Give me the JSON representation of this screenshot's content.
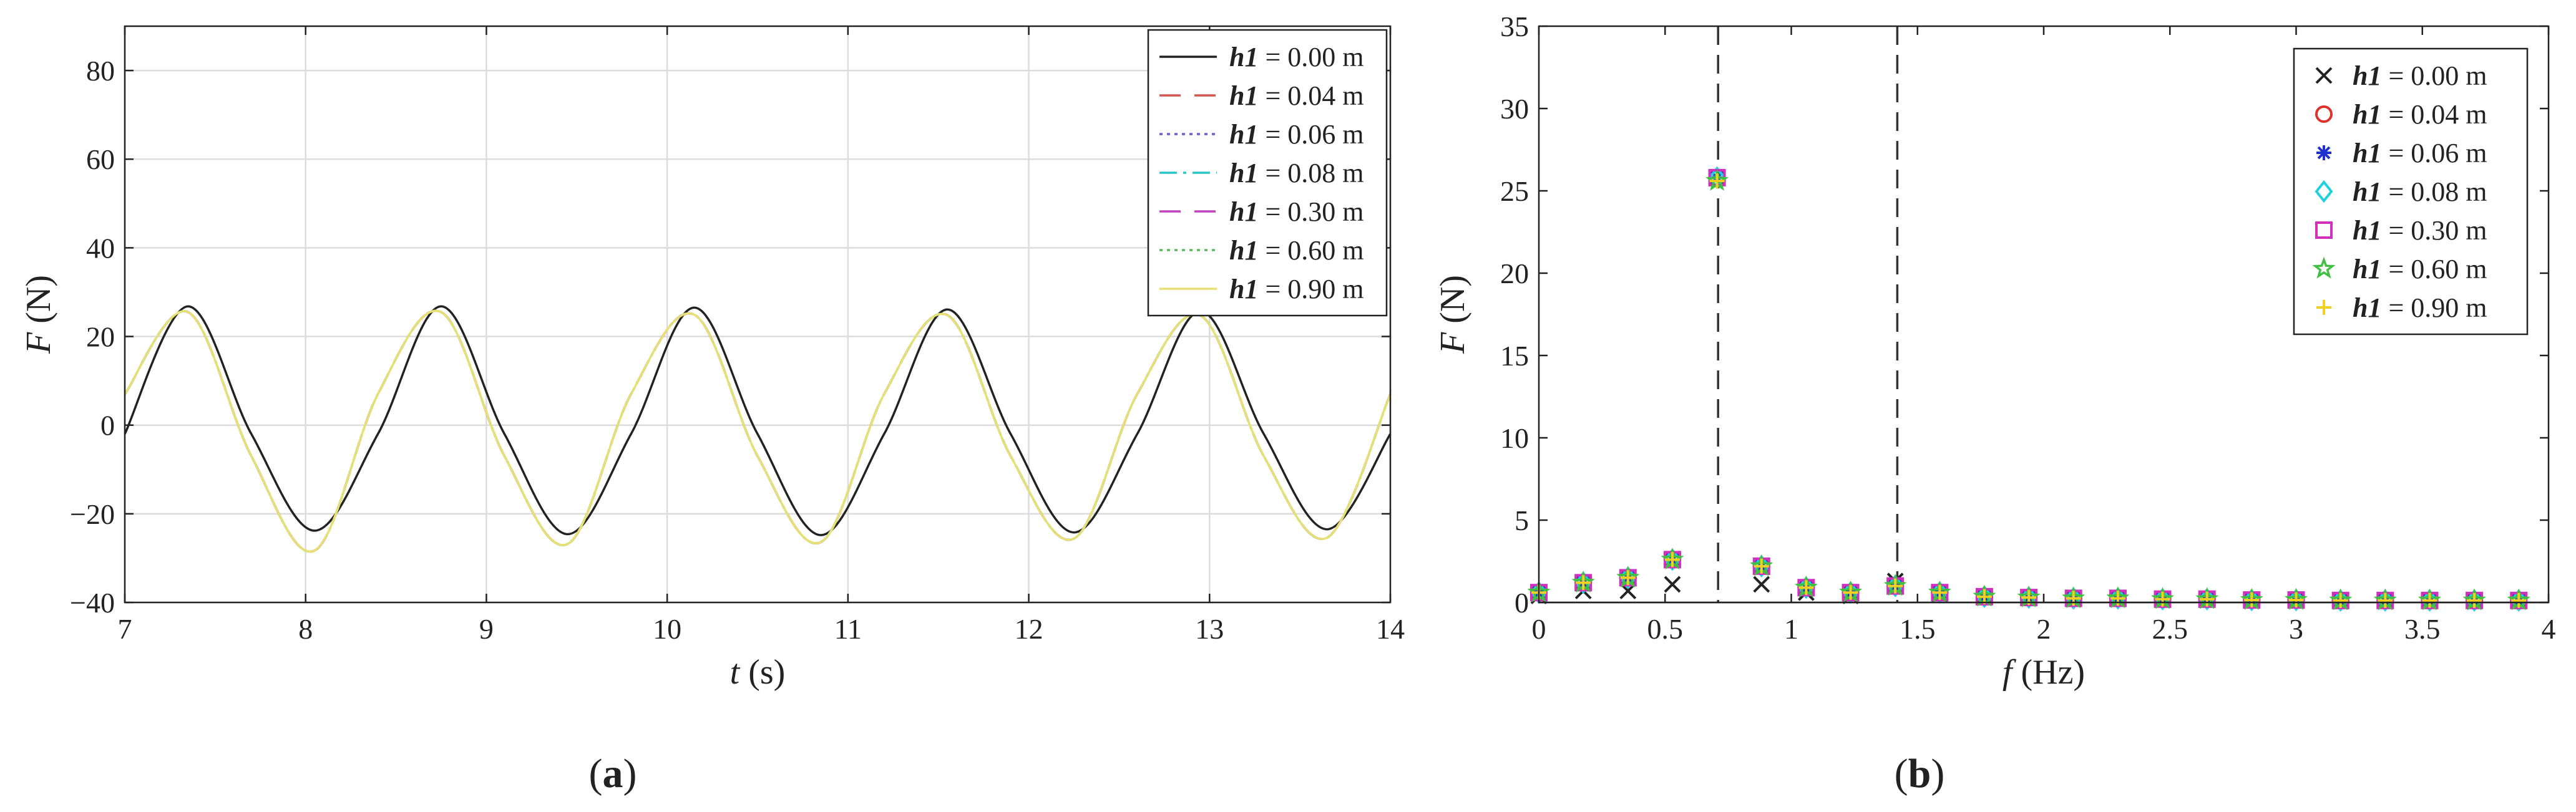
{
  "panels": [
    {
      "label_open": "(",
      "label_letter": "a",
      "label_close": ")"
    },
    {
      "label_open": "(",
      "label_letter": "b",
      "label_close": ")"
    }
  ],
  "chart_data": [
    {
      "type": "line",
      "xlabel_var": "t",
      "xlabel_unit": " (s)",
      "ylabel_var": "F",
      "ylabel_unit": " (N)",
      "xlim": [
        7,
        14
      ],
      "ylim": [
        -40,
        90
      ],
      "xticks": [
        7,
        8,
        9,
        10,
        11,
        12,
        13,
        14
      ],
      "yticks": [
        -40,
        -20,
        0,
        20,
        40,
        60,
        80
      ],
      "grid": true,
      "legend_position": "top-right",
      "t": [
        7.0,
        7.35,
        7.7,
        8.05,
        8.4,
        8.75,
        9.1,
        9.45,
        9.8,
        10.15,
        10.5,
        10.85,
        11.2,
        11.55,
        11.9,
        12.25,
        12.6,
        12.95,
        13.3,
        13.65,
        14.0
      ],
      "series": [
        {
          "name_var": "h1",
          "name_val": " = 0.00 m",
          "color": "#222222",
          "dash": "",
          "values": [
            -2,
            26.8,
            -2,
            -23.8,
            -2,
            26.8,
            -2,
            -24.6,
            -2,
            26.5,
            -2,
            -24.8,
            -2,
            26.1,
            -2,
            -24.2,
            -2,
            25.7,
            -2,
            -23.5,
            -2
          ]
        },
        {
          "name_var": "h1",
          "name_val": " = 0.04 m",
          "color": "#d9534f",
          "dash": "34 22",
          "values": [
            7,
            25.5,
            -7,
            -28.3,
            7,
            25.5,
            -7,
            -26.8,
            7,
            24.9,
            -7,
            -26.4,
            7,
            24.8,
            -7,
            -25.6,
            7,
            24.7,
            -7,
            -25.4,
            7
          ]
        },
        {
          "name_var": "h1",
          "name_val": " = 0.06 m",
          "color": "#6a5acd",
          "dash": "5 7",
          "values": [
            7,
            25.5,
            -7,
            -28.3,
            7,
            25.5,
            -7,
            -26.8,
            7,
            24.9,
            -7,
            -26.4,
            7,
            24.8,
            -7,
            -25.6,
            7,
            24.7,
            -7,
            -25.4,
            7
          ]
        },
        {
          "name_var": "h1",
          "name_val": " = 0.08 m",
          "color": "#28c6c6",
          "dash": "28 10 5 10",
          "values": [
            7,
            25.5,
            -7,
            -28.3,
            7,
            25.5,
            -7,
            -26.8,
            7,
            24.9,
            -7,
            -26.4,
            7,
            24.8,
            -7,
            -25.6,
            7,
            24.7,
            -7,
            -25.4,
            7
          ]
        },
        {
          "name_var": "h1",
          "name_val": " = 0.30 m",
          "color": "#c040c0",
          "dash": "34 22",
          "values": [
            7,
            25.5,
            -7,
            -28.3,
            7,
            25.5,
            -7,
            -26.8,
            7,
            24.9,
            -7,
            -26.4,
            7,
            24.8,
            -7,
            -25.6,
            7,
            24.7,
            -7,
            -25.4,
            7
          ]
        },
        {
          "name_var": "h1",
          "name_val": " = 0.60 m",
          "color": "#5cb85c",
          "dash": "5 7",
          "values": [
            7,
            25.5,
            -7,
            -28.3,
            7,
            25.5,
            -7,
            -26.8,
            7,
            24.9,
            -7,
            -26.4,
            7,
            24.8,
            -7,
            -25.6,
            7,
            24.7,
            -7,
            -25.4,
            7
          ]
        },
        {
          "name_var": "h1",
          "name_val": " = 0.90 m",
          "color": "#e8e070",
          "dash": "",
          "values": [
            7,
            25.5,
            -7,
            -28.3,
            7,
            25.5,
            -7,
            -26.8,
            7,
            24.9,
            -7,
            -26.4,
            7,
            24.8,
            -7,
            -25.6,
            7,
            24.7,
            -7,
            -25.4,
            7
          ]
        }
      ]
    },
    {
      "type": "scatter",
      "xlabel_var": "f",
      "xlabel_unit": " (Hz)",
      "ylabel_var": "F",
      "ylabel_unit": " (N)",
      "xlim": [
        0,
        4
      ],
      "ylim": [
        0,
        35
      ],
      "xticks": [
        0,
        0.5,
        1,
        1.5,
        2,
        2.5,
        3,
        3.5,
        4
      ],
      "yticks": [
        0,
        5,
        10,
        15,
        20,
        25,
        30,
        35
      ],
      "grid": false,
      "legend_position": "top-right",
      "vlines": [
        0.71,
        1.42
      ],
      "f": [
        0,
        0.176,
        0.353,
        0.529,
        0.706,
        0.882,
        1.059,
        1.235,
        1.412,
        1.588,
        1.765,
        1.941,
        2.118,
        2.294,
        2.471,
        2.647,
        2.824,
        3.0,
        3.176,
        3.353,
        3.529,
        3.706,
        3.882
      ],
      "series": [
        {
          "name_var": "h1",
          "name_val": " = 0.00 m",
          "color": "#222222",
          "marker": "x",
          "values": [
            0.4,
            0.7,
            0.7,
            1.1,
            25.8,
            1.1,
            0.6,
            0.4,
            1.3,
            0.5,
            0.3,
            0.3,
            0.2,
            0.2,
            0.15,
            0.15,
            0.12,
            0.12,
            0.1,
            0.1,
            0.1,
            0.1,
            0.1
          ]
        },
        {
          "name_var": "h1",
          "name_val": " = 0.04 m",
          "color": "#e0302a",
          "marker": "o",
          "values": [
            0.6,
            1.2,
            1.5,
            2.6,
            25.8,
            2.2,
            0.9,
            0.6,
            1.0,
            0.6,
            0.35,
            0.3,
            0.25,
            0.25,
            0.2,
            0.2,
            0.15,
            0.15,
            0.12,
            0.12,
            0.12,
            0.12,
            0.12
          ]
        },
        {
          "name_var": "h1",
          "name_val": " = 0.06 m",
          "color": "#2030d0",
          "marker": "*",
          "values": [
            0.6,
            1.2,
            1.5,
            2.6,
            25.8,
            2.2,
            0.9,
            0.6,
            1.0,
            0.6,
            0.35,
            0.3,
            0.25,
            0.25,
            0.2,
            0.2,
            0.15,
            0.15,
            0.12,
            0.12,
            0.12,
            0.12,
            0.12
          ]
        },
        {
          "name_var": "h1",
          "name_val": " = 0.08 m",
          "color": "#20d0e0",
          "marker": "d",
          "values": [
            0.6,
            1.2,
            1.5,
            2.6,
            25.8,
            2.2,
            0.9,
            0.6,
            1.0,
            0.6,
            0.35,
            0.3,
            0.25,
            0.25,
            0.2,
            0.2,
            0.15,
            0.15,
            0.12,
            0.12,
            0.12,
            0.12,
            0.12
          ]
        },
        {
          "name_var": "h1",
          "name_val": " = 0.30 m",
          "color": "#d030c0",
          "marker": "s",
          "values": [
            0.6,
            1.2,
            1.5,
            2.6,
            25.8,
            2.2,
            0.9,
            0.6,
            1.0,
            0.6,
            0.35,
            0.3,
            0.25,
            0.25,
            0.2,
            0.2,
            0.15,
            0.15,
            0.12,
            0.12,
            0.12,
            0.12,
            0.12
          ]
        },
        {
          "name_var": "h1",
          "name_val": " = 0.60 m",
          "color": "#40c040",
          "marker": "p",
          "values": [
            0.6,
            1.2,
            1.5,
            2.6,
            25.6,
            2.2,
            0.9,
            0.6,
            1.0,
            0.6,
            0.35,
            0.3,
            0.25,
            0.25,
            0.2,
            0.2,
            0.15,
            0.15,
            0.12,
            0.12,
            0.12,
            0.12,
            0.12
          ]
        },
        {
          "name_var": "h1",
          "name_val": " = 0.90 m",
          "color": "#f0d020",
          "marker": "+",
          "values": [
            0.6,
            1.2,
            1.5,
            2.6,
            25.6,
            2.2,
            0.9,
            0.6,
            1.0,
            0.6,
            0.35,
            0.3,
            0.25,
            0.25,
            0.2,
            0.2,
            0.15,
            0.15,
            0.12,
            0.12,
            0.12,
            0.12,
            0.12
          ]
        }
      ]
    }
  ]
}
